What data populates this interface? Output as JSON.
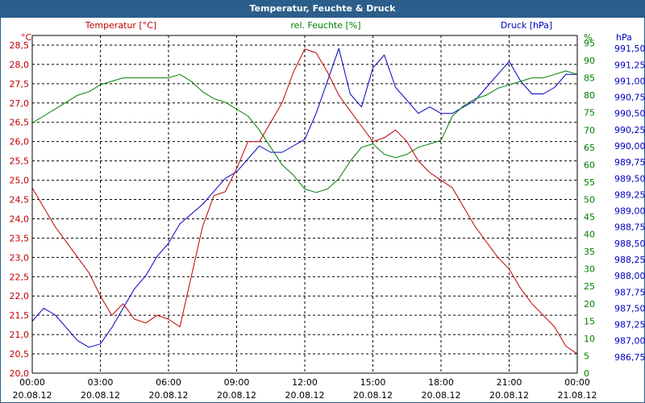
{
  "window": {
    "title": "Temperatur, Feuchte & Druck"
  },
  "colors": {
    "temperature": "#c00000",
    "humidity": "#008000",
    "pressure": "#0000c0",
    "grid": "#000000",
    "axis": "#000000",
    "title_bg": "#2c5e8c"
  },
  "chart_data": {
    "type": "line",
    "title": "Temperatur, Feuchte & Druck",
    "x_labels": [
      {
        "time": "00:00",
        "date": "20.08.12"
      },
      {
        "time": "03:00",
        "date": "20.08.12"
      },
      {
        "time": "06:00",
        "date": "20.08.12"
      },
      {
        "time": "09:00",
        "date": "20.08.12"
      },
      {
        "time": "12:00",
        "date": "20.08.12"
      },
      {
        "time": "15:00",
        "date": "20.08.12"
      },
      {
        "time": "18:00",
        "date": "20.08.12"
      },
      {
        "time": "21:00",
        "date": "20.08.12"
      },
      {
        "time": "00:00",
        "date": "21.08.12"
      }
    ],
    "xlim": [
      0,
      24
    ],
    "axes": {
      "temperature": {
        "unit": "°C",
        "label": "Temperatur [°C]",
        "ylim": [
          20.0,
          28.75
        ],
        "ticks": [
          "20,0",
          "20,5",
          "21,0",
          "21,5",
          "22,0",
          "22,5",
          "23,0",
          "23,5",
          "24,0",
          "24,5",
          "25,0",
          "25,5",
          "26,0",
          "26,5",
          "27,0",
          "27,5",
          "28,0",
          "28,5"
        ]
      },
      "humidity": {
        "unit": "%",
        "label": "rel. Feuchte [%]",
        "ylim": [
          0,
          97.2
        ],
        "ticks": [
          "0",
          "5",
          "10",
          "15",
          "20",
          "25",
          "30",
          "35",
          "40",
          "45",
          "50",
          "55",
          "60",
          "65",
          "70",
          "75",
          "80",
          "85",
          "90",
          "95"
        ]
      },
      "pressure": {
        "unit": "hPa",
        "label": "Druck [hPa]",
        "ylim": [
          986.5,
          991.7
        ],
        "ticks": [
          "986,75",
          "987,00",
          "987,25",
          "987,50",
          "987,75",
          "988,00",
          "988,25",
          "988,50",
          "988,75",
          "989,00",
          "989,25",
          "989,50",
          "989,75",
          "990,00",
          "990,25",
          "990,50",
          "990,75",
          "991,00",
          "991,25",
          "991,50"
        ]
      }
    },
    "series": [
      {
        "name": "Temperatur [°C]",
        "axis": "temperature",
        "x": [
          0,
          0.5,
          1,
          1.5,
          2,
          2.5,
          3,
          3.5,
          4,
          4.5,
          5,
          5.5,
          6,
          6.5,
          7,
          7.5,
          8,
          8.5,
          9,
          9.5,
          10,
          10.5,
          11,
          11.5,
          12,
          12.5,
          13,
          13.5,
          14,
          14.5,
          15,
          15.5,
          16,
          16.5,
          17,
          17.5,
          18,
          18.5,
          19,
          19.5,
          20,
          20.5,
          21,
          21.5,
          22,
          22.5,
          23,
          23.5,
          24
        ],
        "values": [
          24.8,
          24.3,
          23.8,
          23.4,
          23.0,
          22.6,
          22.0,
          21.5,
          21.8,
          21.4,
          21.3,
          21.5,
          21.4,
          21.2,
          22.5,
          23.8,
          24.6,
          24.7,
          25.3,
          26.0,
          26.0,
          26.5,
          27.0,
          27.8,
          28.4,
          28.3,
          27.8,
          27.2,
          26.8,
          26.4,
          26.0,
          26.1,
          26.3,
          26.0,
          25.5,
          25.2,
          25.0,
          24.8,
          24.3,
          23.8,
          23.4,
          23.0,
          22.7,
          22.2,
          21.8,
          21.5,
          21.2,
          20.7,
          20.5
        ]
      },
      {
        "name": "rel. Feuchte [%]",
        "axis": "humidity",
        "x": [
          0,
          0.5,
          1,
          1.5,
          2,
          2.5,
          3,
          3.5,
          4,
          4.5,
          5,
          5.5,
          6,
          6.5,
          7,
          7.5,
          8,
          8.5,
          9,
          9.5,
          10,
          10.5,
          11,
          11.5,
          12,
          12.5,
          13,
          13.5,
          14,
          14.5,
          15,
          15.5,
          16,
          16.5,
          17,
          17.5,
          18,
          18.5,
          19,
          19.5,
          20,
          20.5,
          21,
          21.5,
          22,
          22.5,
          23,
          23.5,
          24
        ],
        "values": [
          72,
          74,
          76,
          78,
          80,
          81,
          83,
          84,
          85,
          85,
          85,
          85,
          85,
          86,
          84,
          81,
          79,
          78,
          76,
          74,
          70,
          65,
          60,
          57,
          53,
          52,
          53,
          56,
          61,
          65,
          66,
          63,
          62,
          63,
          65,
          66,
          67,
          74,
          77,
          79,
          80,
          82,
          83,
          84,
          85,
          85,
          86,
          87,
          86
        ]
      },
      {
        "name": "Druck [hPa]",
        "axis": "pressure",
        "x": [
          0,
          0.5,
          1,
          1.5,
          2,
          2.5,
          3,
          3.5,
          4,
          4.5,
          5,
          5.5,
          6,
          6.5,
          7,
          7.5,
          8,
          8.5,
          9,
          9.5,
          10,
          10.5,
          11,
          11.5,
          12,
          12.5,
          13,
          13.5,
          14,
          14.5,
          15,
          15.5,
          16,
          16.5,
          17,
          17.5,
          18,
          18.5,
          19,
          19.5,
          20,
          20.5,
          21,
          21.5,
          22,
          22.5,
          23,
          23.5,
          24
        ],
        "values": [
          987.3,
          987.5,
          987.4,
          987.2,
          987.0,
          986.9,
          986.95,
          987.2,
          987.5,
          987.8,
          988.0,
          988.3,
          988.5,
          988.8,
          988.95,
          989.1,
          989.3,
          989.5,
          989.6,
          989.8,
          990.0,
          989.9,
          989.9,
          990.0,
          990.1,
          990.5,
          991.0,
          991.5,
          990.8,
          990.6,
          991.2,
          991.4,
          990.9,
          990.7,
          990.5,
          990.6,
          990.5,
          990.5,
          990.6,
          990.7,
          990.9,
          991.1,
          991.3,
          991.0,
          990.8,
          990.8,
          990.9,
          991.1,
          991.1
        ]
      }
    ]
  }
}
